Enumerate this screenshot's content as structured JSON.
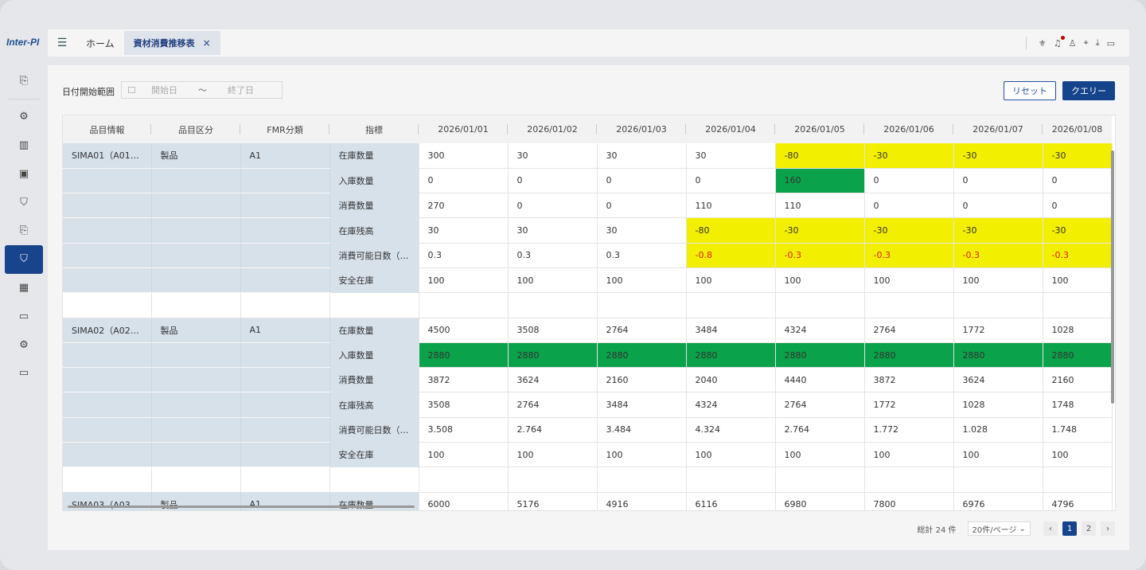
{
  "app": {
    "logo": "Inter-PI"
  },
  "tabs": [
    {
      "label": "ホーム"
    },
    {
      "label": "資材消費推移表",
      "close": "×"
    }
  ],
  "filter": {
    "label": "日付開始範囲",
    "start_placeholder": "開始日",
    "separator": "～",
    "end_placeholder": "終了日",
    "reset_label": "リセット",
    "query_label": "クエリー"
  },
  "table": {
    "headers": [
      "品目情報",
      "品目区分",
      "FMR分類",
      "指標",
      "2026/01/01",
      "2026/01/02",
      "2026/01/03",
      "2026/01/04",
      "2026/01/05",
      "2026/01/06",
      "2026/01/07",
      "2026/01/08"
    ],
    "rows": [
      [
        "SIMA01（A01…",
        "製品",
        "A1",
        "在庫数量",
        "300",
        "30",
        "30",
        "30",
        "-80",
        "-30",
        "-30",
        "-30"
      ],
      [
        "",
        "",
        "",
        "入庫数量",
        "0",
        "0",
        "0",
        "0",
        "160",
        "0",
        "0",
        "0"
      ],
      [
        "",
        "",
        "",
        "消費数量",
        "270",
        "0",
        "0",
        "110",
        "110",
        "0",
        "0",
        "0"
      ],
      [
        "",
        "",
        "",
        "在庫残高",
        "30",
        "30",
        "30",
        "-80",
        "-30",
        "-30",
        "-30",
        "-30"
      ],
      [
        "",
        "",
        "",
        "消費可能日数（…",
        "0.3",
        "0.3",
        "0.3",
        "-0.8",
        "-0.3",
        "-0.3",
        "-0.3",
        "-0.3"
      ],
      [
        "",
        "",
        "",
        "安全在庫",
        "100",
        "100",
        "100",
        "100",
        "100",
        "100",
        "100",
        "100"
      ],
      [
        "",
        "",
        "",
        "",
        "",
        "",
        "",
        "",
        "",
        "",
        "",
        ""
      ],
      [
        "SIMA02（A02…",
        "製品",
        "A1",
        "在庫数量",
        "4500",
        "3508",
        "2764",
        "3484",
        "4324",
        "2764",
        "1772",
        "1028"
      ],
      [
        "",
        "",
        "",
        "入庫数量",
        "2880",
        "2880",
        "2880",
        "2880",
        "2880",
        "2880",
        "2880",
        "2880"
      ],
      [
        "",
        "",
        "",
        "消費数量",
        "3872",
        "3624",
        "2160",
        "2040",
        "4440",
        "3872",
        "3624",
        "2160"
      ],
      [
        "",
        "",
        "",
        "在庫残高",
        "3508",
        "2764",
        "3484",
        "4324",
        "2764",
        "1772",
        "1028",
        "1748"
      ],
      [
        "",
        "",
        "",
        "消費可能日数（…",
        "3.508",
        "2.764",
        "3.484",
        "4.324",
        "2.764",
        "1.772",
        "1.028",
        "1.748"
      ],
      [
        "",
        "",
        "",
        "安全在庫",
        "100",
        "100",
        "100",
        "100",
        "100",
        "100",
        "100",
        "100"
      ],
      [
        "",
        "",
        "",
        "",
        "",
        "",
        "",
        "",
        "",
        "",
        "",
        ""
      ],
      [
        "SIMA03（A03…",
        "製品",
        "A1",
        "在庫数量",
        "6000",
        "5176",
        "4916",
        "6116",
        "6980",
        "7800",
        "6976",
        "4796"
      ]
    ],
    "highlight_colors": {
      "yellow": "#f3ef00",
      "green": "#0aa24a",
      "negative": "#e2231a"
    }
  },
  "pager": {
    "total": "総計 24 件",
    "page_size": "20件/ページ",
    "prev": "‹",
    "pages": [
      "1",
      "2"
    ],
    "next": "›"
  }
}
